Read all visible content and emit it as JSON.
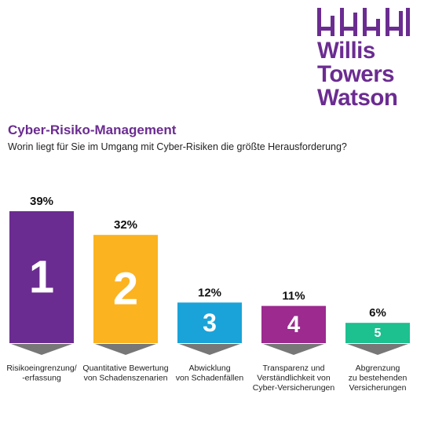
{
  "brand": {
    "name_lines": [
      "Willis",
      "Towers",
      "Watson"
    ],
    "color": "#6b2c91",
    "mark_icon": "wtw-bars-logo-icon"
  },
  "header": {
    "title": "Cyber-Risiko-Management",
    "subtitle": "Worin liegt für Sie im Umgang mit Cyber-Risiken die größte Herausforderung?"
  },
  "chart_data": {
    "type": "bar",
    "categories": [
      "Risikoeingrenzung/\n-erfassung",
      "Quantitative Bewertung\nvon Schadenszenarien",
      "Abwicklung\nvon Schadenfällen",
      "Transparenz und\nVerständlichkeit von\nCyber-Versicherungen",
      "Abgrenzung\nzu bestehenden\nVersicherungen"
    ],
    "values": [
      39,
      32,
      12,
      11,
      6
    ],
    "value_labels": [
      "39%",
      "32%",
      "12%",
      "11%",
      "6%"
    ],
    "rank_labels": [
      "1",
      "2",
      "3",
      "4",
      "5"
    ],
    "colors": [
      "#6b2c91",
      "#fbb31f",
      "#1aa3d9",
      "#9c2a8f",
      "#1dc08f"
    ],
    "ylim": [
      0,
      39
    ],
    "grid": false,
    "legend": "none"
  }
}
